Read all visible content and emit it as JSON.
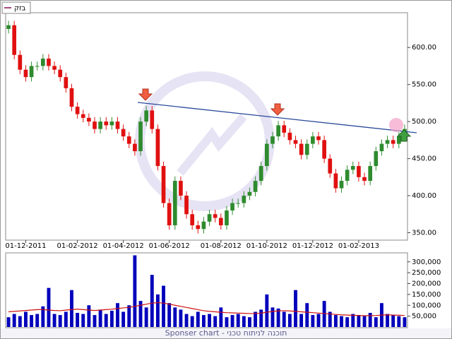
{
  "legend_label": "בזק",
  "footer": "Sponser chart - תוכנה לניתוח טכני",
  "chart_data": [
    {
      "type": "candlestick",
      "categories": [
        null,
        null,
        null,
        "01-12-2011",
        null,
        null,
        null,
        null,
        null,
        null,
        null,
        null,
        "01-02-2012",
        null,
        null,
        null,
        null,
        null,
        null,
        null,
        "01-04-2012",
        null,
        null,
        null,
        null,
        null,
        null,
        null,
        "01-06-2012",
        null,
        null,
        null,
        null,
        null,
        null,
        null,
        null,
        "01-08-2012",
        null,
        null,
        null,
        null,
        null,
        null,
        null,
        "01-10-2012",
        null,
        null,
        null,
        null,
        null,
        null,
        null,
        "01-12-2012",
        null,
        null,
        null,
        null,
        null,
        null,
        null,
        "01-02-2013",
        null,
        null,
        null,
        null,
        null,
        null,
        null,
        null
      ],
      "open": [
        625,
        630,
        590,
        570,
        560,
        575,
        575,
        585,
        575,
        570,
        560,
        545,
        520,
        510,
        505,
        500,
        490,
        500,
        495,
        500,
        490,
        480,
        470,
        460,
        500,
        515,
        490,
        440,
        390,
        360,
        420,
        400,
        375,
        360,
        355,
        365,
        375,
        370,
        360,
        380,
        390,
        390,
        400,
        405,
        420,
        440,
        470,
        480,
        495,
        485,
        475,
        470,
        455,
        470,
        480,
        475,
        450,
        430,
        410,
        420,
        435,
        440,
        425,
        420,
        440,
        460,
        470,
        475,
        470,
        480
      ],
      "high": [
        636,
        636,
        596,
        576,
        581,
        581,
        591,
        591,
        581,
        576,
        566,
        551,
        526,
        516,
        511,
        506,
        506,
        506,
        506,
        506,
        496,
        486,
        476,
        506,
        521,
        521,
        496,
        446,
        396,
        426,
        426,
        406,
        381,
        366,
        371,
        381,
        381,
        376,
        386,
        396,
        396,
        406,
        411,
        426,
        446,
        476,
        486,
        501,
        501,
        491,
        481,
        476,
        476,
        486,
        486,
        481,
        456,
        436,
        426,
        441,
        446,
        446,
        431,
        446,
        466,
        476,
        481,
        481,
        486,
        496
      ],
      "low": [
        619,
        584,
        564,
        554,
        554,
        569,
        569,
        569,
        564,
        554,
        539,
        514,
        504,
        499,
        494,
        484,
        484,
        489,
        489,
        484,
        474,
        464,
        454,
        454,
        494,
        484,
        434,
        384,
        354,
        354,
        394,
        369,
        354,
        349,
        349,
        359,
        364,
        354,
        354,
        374,
        384,
        384,
        394,
        399,
        414,
        434,
        464,
        474,
        479,
        469,
        464,
        449,
        449,
        464,
        469,
        444,
        424,
        404,
        404,
        414,
        429,
        419,
        414,
        414,
        434,
        454,
        464,
        464,
        464,
        474
      ],
      "close": [
        630,
        590,
        570,
        560,
        575,
        575,
        585,
        575,
        570,
        560,
        545,
        520,
        510,
        505,
        500,
        490,
        500,
        495,
        500,
        490,
        480,
        470,
        460,
        500,
        515,
        490,
        440,
        390,
        360,
        420,
        400,
        375,
        360,
        355,
        365,
        375,
        370,
        360,
        380,
        390,
        390,
        400,
        405,
        420,
        440,
        470,
        480,
        495,
        485,
        475,
        470,
        455,
        470,
        480,
        475,
        450,
        430,
        410,
        420,
        435,
        440,
        425,
        420,
        440,
        460,
        470,
        475,
        470,
        480,
        490
      ],
      "up_color": "#2e8b2e",
      "down_color": "#e01010",
      "ylim": [
        340,
        645
      ],
      "yticks": [
        {
          "value": 350,
          "label": "350.00"
        },
        {
          "value": 400,
          "label": "400.00"
        },
        {
          "value": 450,
          "label": "450.00"
        },
        {
          "value": 500,
          "label": "500.00"
        },
        {
          "value": 550,
          "label": "550.00"
        },
        {
          "value": 600,
          "label": "600.00"
        }
      ]
    },
    {
      "type": "bar",
      "categories": [
        null,
        null,
        null,
        null,
        null,
        null,
        null,
        null,
        null,
        null,
        null,
        null,
        null,
        null,
        null,
        null,
        null,
        null,
        null,
        null,
        null,
        null,
        null,
        null,
        null,
        null,
        null,
        null,
        null,
        null,
        null,
        null,
        null,
        null,
        null,
        null,
        null,
        null,
        null,
        null,
        null,
        null,
        null,
        null,
        null,
        null,
        null,
        null,
        null,
        null,
        null,
        null,
        null,
        null,
        null,
        null,
        null,
        null,
        null,
        null,
        null,
        null,
        null,
        null,
        null,
        null,
        null,
        null,
        null,
        null
      ],
      "series": [
        {
          "type": "bar",
          "color": "#0000bb",
          "values": [
            45000,
            60000,
            50000,
            70000,
            55000,
            60000,
            95000,
            180000,
            60000,
            55000,
            70000,
            170000,
            65000,
            60000,
            100000,
            55000,
            80000,
            60000,
            75000,
            110000,
            70000,
            100000,
            330000,
            120000,
            90000,
            240000,
            150000,
            190000,
            110000,
            90000,
            80000,
            60000,
            50000,
            70000,
            55000,
            60000,
            50000,
            90000,
            45000,
            55000,
            60000,
            50000,
            45000,
            70000,
            80000,
            150000,
            90000,
            85000,
            70000,
            60000,
            170000,
            60000,
            110000,
            55000,
            60000,
            120000,
            70000,
            55000,
            50000,
            45000,
            60000,
            55000,
            50000,
            65000,
            45000,
            110000,
            60000,
            55000,
            50000,
            45000
          ]
        },
        {
          "type": "line",
          "color": "#d01010",
          "values": [
            70000,
            72000,
            74000,
            76000,
            78000,
            80000,
            80000,
            78000,
            76000,
            75000,
            78000,
            80000,
            82000,
            80000,
            78000,
            76000,
            78000,
            80000,
            82000,
            85000,
            88000,
            90000,
            95000,
            100000,
            105000,
            110000,
            112000,
            110000,
            105000,
            100000,
            95000,
            90000,
            85000,
            80000,
            75000,
            72000,
            70000,
            68000,
            66000,
            65000,
            64000,
            63000,
            62000,
            62000,
            64000,
            68000,
            72000,
            74000,
            75000,
            74000,
            72000,
            70000,
            68000,
            66000,
            64000,
            62000,
            60000,
            58000,
            56000,
            55000,
            54000,
            53000,
            52000,
            52000,
            53000,
            55000,
            56000,
            55000,
            54000,
            53000
          ]
        }
      ],
      "ylim": [
        0,
        335000
      ],
      "yticks": [
        {
          "value": 50000,
          "label": "50,000"
        },
        {
          "value": 100000,
          "label": "100,000"
        },
        {
          "value": 150000,
          "label": "150,000"
        },
        {
          "value": 200000,
          "label": "200,000"
        },
        {
          "value": 250000,
          "label": "250,000"
        },
        {
          "value": 300000,
          "label": "300,000"
        }
      ]
    }
  ]
}
